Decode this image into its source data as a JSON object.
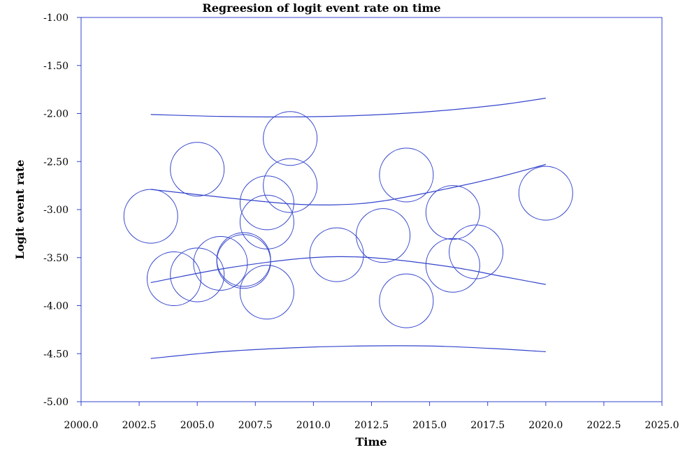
{
  "chart_data": {
    "type": "scatter",
    "title": "Regreesion of logit event rate on time",
    "xlabel": "Time",
    "ylabel": "Logit event rate",
    "xlim": [
      2000.0,
      2025.0
    ],
    "ylim": [
      -5.0,
      -1.0
    ],
    "x_ticks": [
      "2000.0",
      "2002.5",
      "2005.0",
      "2007.5",
      "2010.0",
      "2012.5",
      "2015.0",
      "2017.5",
      "2020.0",
      "2022.5",
      "2025.0"
    ],
    "y_ticks": [
      "-1.00",
      "-1.50",
      "-2.00",
      "-2.50",
      "-3.00",
      "-3.50",
      "-4.00",
      "-4.50",
      "-5.00"
    ],
    "grid": false,
    "legend": "none",
    "color": "#3344cc",
    "points": [
      {
        "x": 2003,
        "y": -3.07
      },
      {
        "x": 2004,
        "y": -3.72
      },
      {
        "x": 2005,
        "y": -2.58
      },
      {
        "x": 2005,
        "y": -3.68
      },
      {
        "x": 2006,
        "y": -3.56
      },
      {
        "x": 2007,
        "y": -3.52
      },
      {
        "x": 2007,
        "y": -3.54
      },
      {
        "x": 2008,
        "y": -2.93
      },
      {
        "x": 2008,
        "y": -3.13
      },
      {
        "x": 2008,
        "y": -3.86
      },
      {
        "x": 2009,
        "y": -2.26
      },
      {
        "x": 2009,
        "y": -2.75
      },
      {
        "x": 2011,
        "y": -3.47
      },
      {
        "x": 2013,
        "y": -3.27
      },
      {
        "x": 2014,
        "y": -2.64
      },
      {
        "x": 2014,
        "y": -3.95
      },
      {
        "x": 2016,
        "y": -3.03
      },
      {
        "x": 2016,
        "y": -3.58
      },
      {
        "x": 2017,
        "y": -3.44
      },
      {
        "x": 2020,
        "y": -2.83
      }
    ],
    "lines": [
      {
        "role": "upper-outer",
        "x": [
          2003,
          2006,
          2009,
          2012,
          2015,
          2018,
          2020
        ],
        "y": [
          -2.01,
          -2.03,
          -2.035,
          -2.02,
          -1.98,
          -1.91,
          -1.84
        ]
      },
      {
        "role": "upper-inner",
        "x": [
          2003,
          2006,
          2009,
          2011,
          2013,
          2016,
          2018,
          2020
        ],
        "y": [
          -2.79,
          -2.87,
          -2.94,
          -2.95,
          -2.91,
          -2.77,
          -2.66,
          -2.53
        ]
      },
      {
        "role": "regression",
        "x": [
          2003,
          2006,
          2009,
          2011,
          2013,
          2016,
          2018,
          2020
        ],
        "y": [
          -3.76,
          -3.62,
          -3.52,
          -3.49,
          -3.51,
          -3.6,
          -3.69,
          -3.78
        ]
      },
      {
        "role": "lower-outer",
        "x": [
          2003,
          2006,
          2009,
          2012,
          2015,
          2018,
          2020
        ],
        "y": [
          -4.55,
          -4.48,
          -4.44,
          -4.42,
          -4.42,
          -4.45,
          -4.48
        ]
      }
    ]
  }
}
